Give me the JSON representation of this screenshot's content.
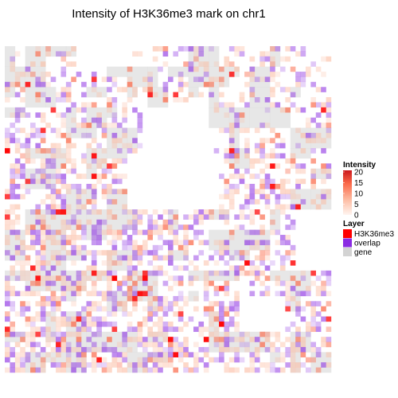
{
  "chart_data": {
    "type": "heatmap",
    "title": "Intensity of H3K36me3 mark on chr1",
    "xlabel": "",
    "ylabel": "",
    "grid": false,
    "legend_position": "right",
    "intensity_legend": {
      "title": "Intensity",
      "ticks": [
        "20",
        "15",
        "10",
        "5",
        "0"
      ],
      "range": [
        0,
        20
      ],
      "colors": [
        "#fff5f0",
        "#fdbba1",
        "#fb6a4a",
        "#de2d26",
        "#cb181d"
      ]
    },
    "layer_legend": {
      "title": "Layer",
      "entries": [
        {
          "label": "H3K36me3",
          "color": "#ff0000"
        },
        {
          "label": "overlap",
          "color": "#8a2be2"
        },
        {
          "label": "gene",
          "color": "#d3d3d3"
        }
      ]
    }
  }
}
